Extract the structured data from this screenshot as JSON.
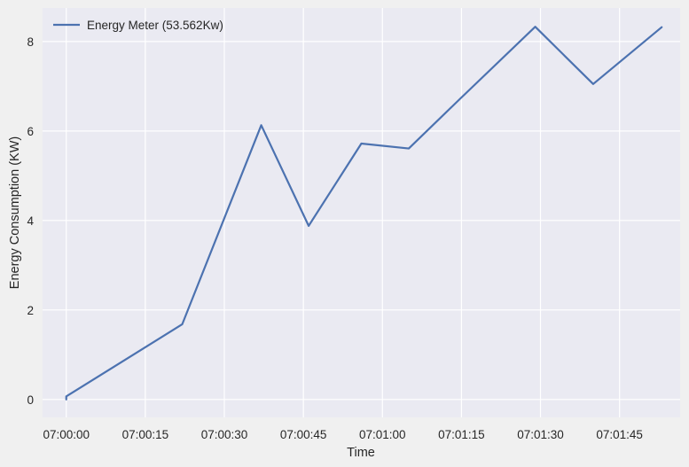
{
  "chart_data": {
    "type": "line",
    "title": "",
    "xlabel": "Time",
    "ylabel": "Energy Consumption (KW)",
    "x_tick_labels": [
      "07:00:00",
      "07:00:15",
      "07:00:30",
      "07:00:45",
      "07:01:00",
      "07:01:15",
      "07:01:30",
      "07:01:45"
    ],
    "x_tick_seconds": [
      0,
      15,
      30,
      45,
      60,
      75,
      90,
      105
    ],
    "y_ticks": [
      0,
      2,
      4,
      6,
      8
    ],
    "xlim_seconds": [
      -4.5,
      116.5
    ],
    "ylim": [
      -0.4,
      8.75
    ],
    "grid": true,
    "legend_position": "top-left",
    "series": [
      {
        "name": "Energy Meter (53.562Kw)",
        "color": "#4c72b0",
        "x_seconds": [
          0,
          0,
          22,
          37,
          46,
          56,
          65,
          75,
          89,
          100,
          113
        ],
        "values": [
          0.0,
          0.07,
          1.68,
          6.13,
          3.88,
          5.72,
          5.61,
          6.75,
          8.33,
          7.05,
          8.32
        ]
      }
    ]
  },
  "colors": {
    "page_background": "#f0f0f0",
    "plot_background": "#eaeaf2",
    "grid": "#ffffff",
    "text": "#262626"
  }
}
